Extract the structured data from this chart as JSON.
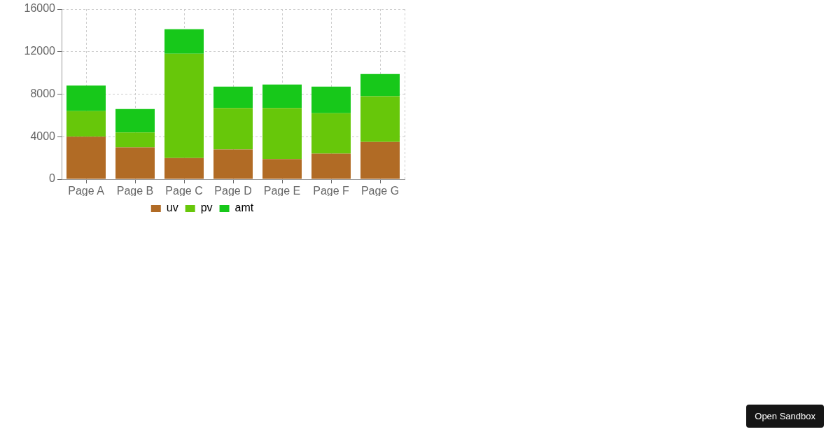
{
  "chart_data": {
    "type": "bar",
    "categories": [
      "Page A",
      "Page B",
      "Page C",
      "Page D",
      "Page E",
      "Page F",
      "Page G"
    ],
    "series": [
      {
        "name": "uv",
        "color": "#b16b25",
        "values": [
          4000,
          3000,
          2000,
          2800,
          1900,
          2400,
          3500
        ]
      },
      {
        "name": "pv",
        "color": "#67c70a",
        "values": [
          2400,
          1400,
          9800,
          3900,
          4800,
          3800,
          4300
        ]
      },
      {
        "name": "amt",
        "color": "#17c81a",
        "values": [
          2400,
          2200,
          2300,
          2000,
          2200,
          2500,
          2100
        ]
      }
    ],
    "stacked": true,
    "ylim": [
      0,
      16000
    ],
    "yticks": [
      0,
      4000,
      8000,
      12000,
      16000
    ],
    "grid": true,
    "legend": "bottom",
    "annotations": [
      "Open Sandbox"
    ]
  }
}
